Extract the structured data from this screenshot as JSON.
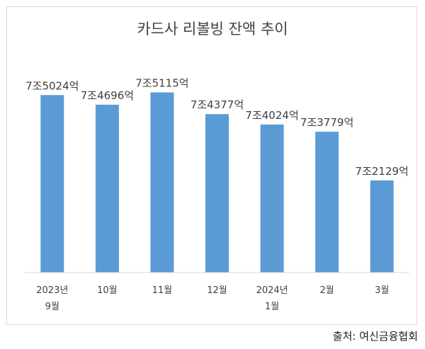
{
  "chart_data": {
    "type": "bar",
    "title": "카드사 리볼빙 잔액 추이",
    "categories": [
      [
        "2023년",
        "9월"
      ],
      [
        "10월"
      ],
      [
        "11월"
      ],
      [
        "12월"
      ],
      [
        "2024년",
        "1월"
      ],
      [
        "2월"
      ],
      [
        "3월"
      ]
    ],
    "values": [
      75024,
      74696,
      75115,
      74377,
      74024,
      73779,
      72129
    ],
    "value_unit": "억원",
    "data_labels": [
      "7조5024억",
      "7조4696억",
      "7조5115억",
      "7조4377억",
      "7조4024억",
      "7조3779억",
      "7조2129억"
    ],
    "ylim": [
      69000,
      75800
    ],
    "xlabel": "",
    "ylabel": "",
    "grid": false,
    "legend": "none",
    "bar_color": "#5b9bd5"
  },
  "source": "출처: 여신금융협회"
}
